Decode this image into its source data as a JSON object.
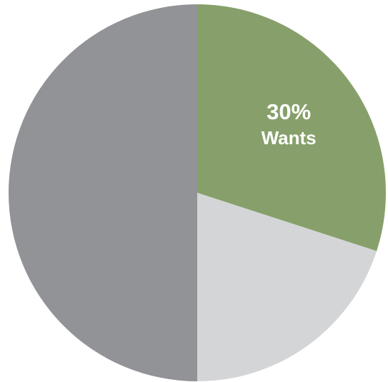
{
  "chart_data": {
    "type": "pie",
    "categories": [
      "Wants",
      null,
      null
    ],
    "values": [
      30,
      20,
      50
    ],
    "value_labels": [
      "30%",
      null,
      null
    ],
    "colors": [
      "#87a06b",
      "#d4d5d7",
      "#929397"
    ],
    "start_angle": 0,
    "direction": "clockwise"
  }
}
